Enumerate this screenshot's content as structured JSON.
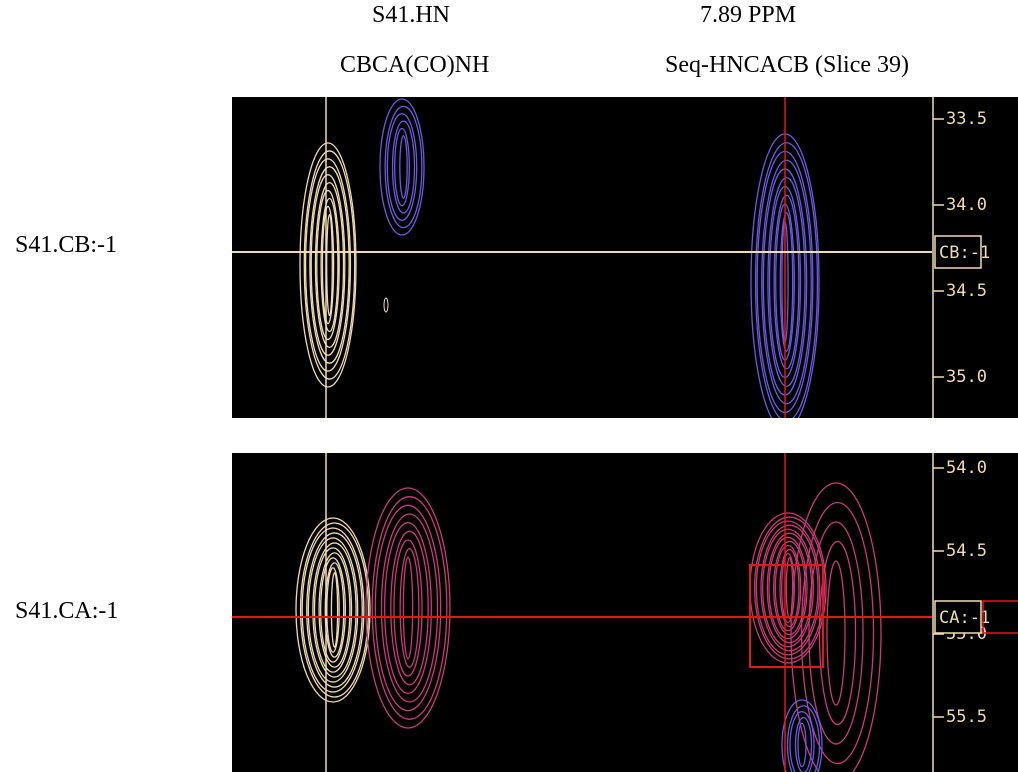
{
  "header": {
    "reference": "S41.HN",
    "reference_experiment": "CBCA(CO)NH",
    "shift": "7.89 PPM",
    "experiment": "Seq-HNCACB (Slice 39)"
  },
  "strips": [
    {
      "label": "S41.CB:-1",
      "marker": "CB:-1",
      "ticks": [
        "33.5",
        "34.0",
        "34.5",
        "35.0"
      ]
    },
    {
      "label": "S41.CA:-1",
      "marker": "CA:-1",
      "ticks": [
        "54.0",
        "54.5",
        "55.0",
        "55.5"
      ]
    }
  ]
}
